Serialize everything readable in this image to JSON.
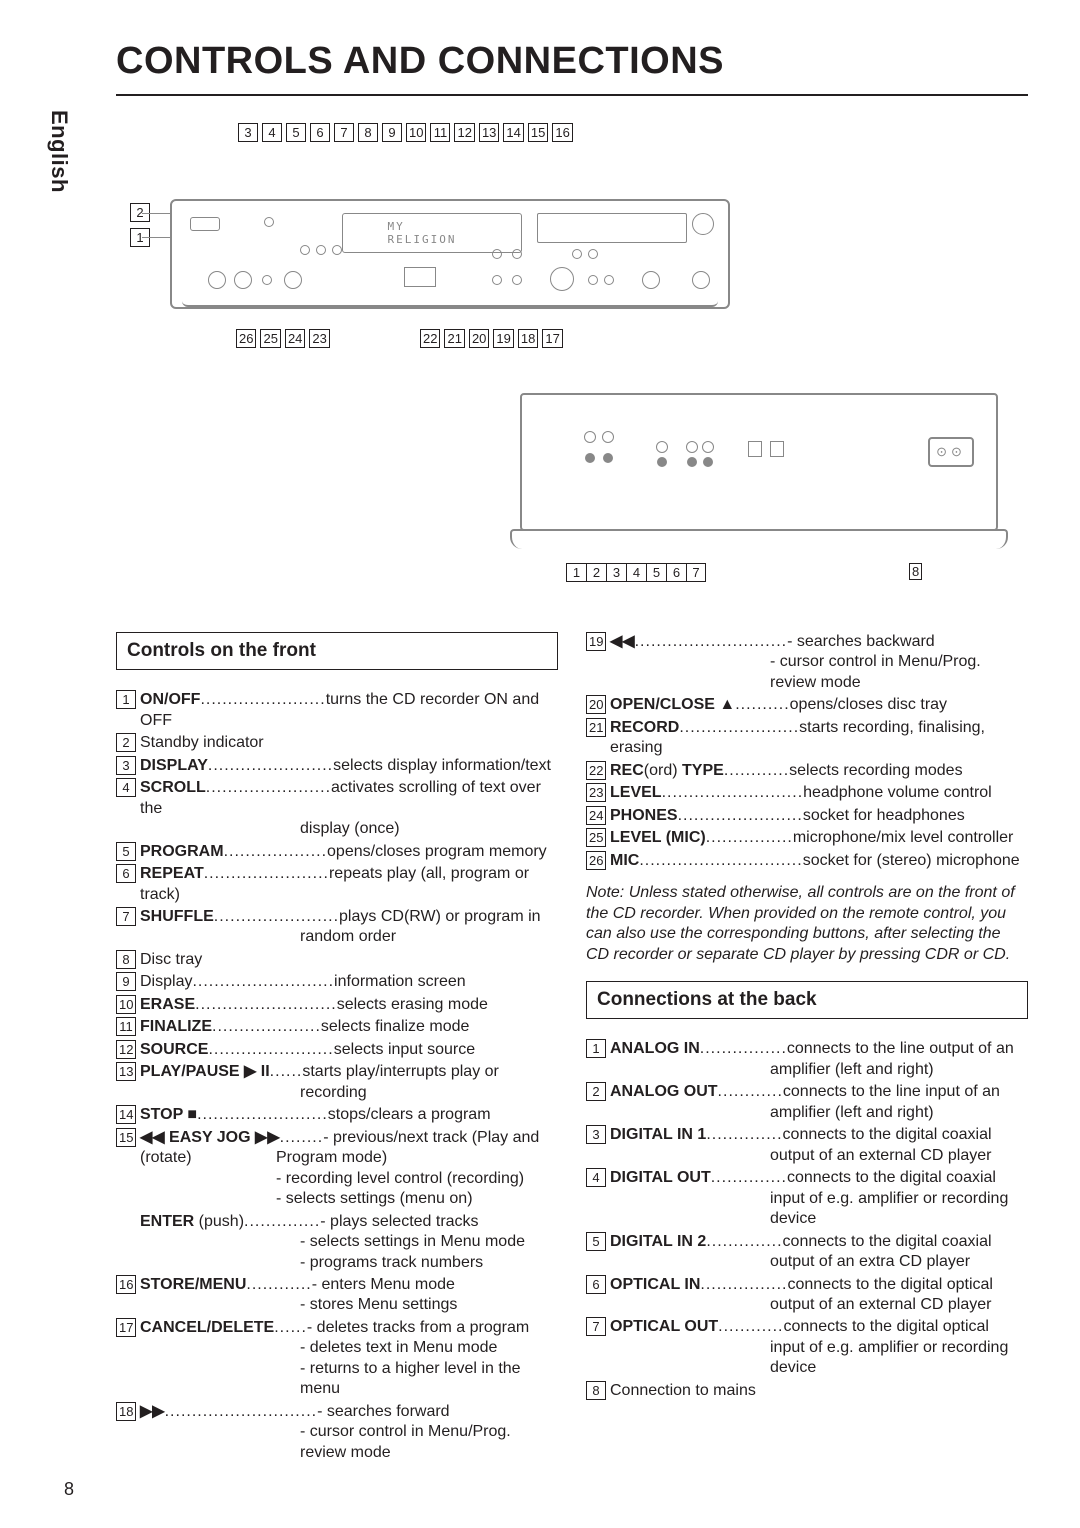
{
  "page": {
    "title": "CONTROLS AND CONNECTIONS",
    "side_tab": "English",
    "page_number": "8"
  },
  "sections": {
    "front_title": "Controls on the front",
    "back_title": "Connections at the back"
  },
  "diagram": {
    "top_numbers": [
      "3",
      "4",
      "5",
      "6",
      "7",
      "8",
      "9",
      "10",
      "11",
      "12",
      "13",
      "14",
      "15",
      "16"
    ],
    "left_numbers": [
      "2",
      "1"
    ],
    "bottom_left_numbers": [
      "26",
      "25",
      "24",
      "23"
    ],
    "bottom_right_numbers": [
      "22",
      "21",
      "20",
      "19",
      "18",
      "17"
    ],
    "rear_numbers": [
      "1",
      "2",
      "3",
      "4",
      "5",
      "6",
      "7"
    ],
    "rear_number_8": "8",
    "display_text": "MY RELIGION"
  },
  "front": [
    {
      "n": "1",
      "term": "ON/OFF",
      "dots": ".......................",
      "desc": "turns the CD recorder ON and OFF"
    },
    {
      "n": "2",
      "term": "",
      "dots": "",
      "desc": "Standby indicator"
    },
    {
      "n": "3",
      "term": "DISPLAY",
      "dots": ".......................",
      "desc": "selects display information/text"
    },
    {
      "n": "4",
      "term": "SCROLL",
      "dots": ".......................",
      "desc": "activates scrolling of text over the",
      "extra": [
        "display (once)"
      ]
    },
    {
      "n": "5",
      "term": "PROGRAM",
      "dots": "...................",
      "desc": "opens/closes program memory"
    },
    {
      "n": "6",
      "term": "REPEAT",
      "dots": ".......................",
      "desc": "repeats play (all, program or track)"
    },
    {
      "n": "7",
      "term": "SHUFFLE",
      "dots": ".......................",
      "desc": "plays CD(RW) or program in",
      "extra": [
        "random order"
      ]
    },
    {
      "n": "8",
      "term": "",
      "dots": "",
      "desc": "Disc tray"
    },
    {
      "n": "9",
      "term": "",
      "dots": "",
      "desc_prefix": "Display",
      "desc_dots": "..........................",
      "desc": "information screen"
    },
    {
      "n": "10",
      "term": "ERASE",
      "dots": "..........................",
      "desc": "selects erasing mode"
    },
    {
      "n": "11",
      "term": "FINALIZE",
      "dots": "....................",
      "desc": "selects finalize mode"
    },
    {
      "n": "12",
      "term": "SOURCE",
      "dots": ".......................",
      "desc": "selects input source"
    },
    {
      "n": "13",
      "term": "PLAY/PAUSE ▶ II",
      "dots": "......",
      "desc": "starts play/interrupts play or",
      "extra": [
        "recording"
      ]
    },
    {
      "n": "14",
      "term": "STOP ■",
      "dots": "........................",
      "desc": "stops/clears a program"
    },
    {
      "n": "15",
      "term": "◀◀ EASY JOG ▶▶",
      "dots": "........",
      "desc": "- previous/next track (Play and",
      "sub_label": "(rotate)",
      "extra_at_sub": [
        "Program mode)",
        "- recording level control (recording)",
        "- selects settings (menu on)"
      ]
    },
    {
      "n": "",
      "term": "ENTER",
      "term_suffix": " (push)",
      "dots": "..............",
      "desc": "- plays selected tracks",
      "extra": [
        "- selects settings in Menu mode",
        "- programs track numbers"
      ]
    },
    {
      "n": "16",
      "term": "STORE/MENU",
      "dots": "............",
      "desc": "- enters Menu mode",
      "extra": [
        "- stores Menu settings"
      ]
    },
    {
      "n": "17",
      "term": "CANCEL/DELETE",
      "dots": "......",
      "desc": "- deletes tracks from a program",
      "extra": [
        "- deletes text in Menu mode",
        "- returns to a higher level in the",
        "  menu"
      ]
    },
    {
      "n": "18",
      "term": "▶▶",
      "dots": "............................",
      "desc": "- searches forward",
      "extra": [
        "- cursor control in Menu/Prog.",
        "  review mode"
      ]
    }
  ],
  "front_r": [
    {
      "n": "19",
      "term": "◀◀",
      "dots": "............................",
      "desc": "- searches backward",
      "extra": [
        "- cursor control in Menu/Prog.",
        "  review mode"
      ]
    },
    {
      "n": "20",
      "term": "OPEN/CLOSE ▲",
      "dots": "..........",
      "desc": "opens/closes disc tray"
    },
    {
      "n": "21",
      "term": "RECORD",
      "dots": "......................",
      "desc": "starts recording, finalising, erasing"
    },
    {
      "n": "22",
      "term_prefix": "REC",
      "term_mid": "(ord) ",
      "term": "TYPE",
      "dots": "............",
      "desc": "selects recording modes"
    },
    {
      "n": "23",
      "term": "LEVEL",
      "dots": "..........................",
      "desc": "headphone volume control"
    },
    {
      "n": "24",
      "term": "PHONES",
      "dots": ".......................",
      "desc": "socket for headphones"
    },
    {
      "n": "25",
      "term": "LEVEL (MIC)",
      "dots": "................",
      "desc": "microphone/mix level controller"
    },
    {
      "n": "26",
      "term": "MIC",
      "dots": "..............................",
      "desc": "socket for (stereo) microphone"
    }
  ],
  "note": "Note: Unless stated otherwise, all controls are on the front of the CD recorder. When provided on the remote control, you can also use the corresponding buttons, after selecting the CD recorder or separate CD player by pressing CDR or CD.",
  "back": [
    {
      "n": "1",
      "term": "ANALOG IN",
      "dots": "................",
      "desc": "connects to the line output of an",
      "extra": [
        "amplifier (left and right)"
      ]
    },
    {
      "n": "2",
      "term": "ANALOG OUT",
      "dots": "............",
      "desc": "connects to the line input of an",
      "extra": [
        "amplifier (left and right)"
      ]
    },
    {
      "n": "3",
      "term": "DIGITAL IN 1",
      "dots": "..............",
      "desc": "connects to the digital coaxial",
      "extra": [
        "output of an external CD player"
      ]
    },
    {
      "n": "4",
      "term": "DIGITAL OUT",
      "dots": "..............",
      "desc": "connects to the digital coaxial",
      "extra": [
        "input of e.g. amplifier or recording",
        "device"
      ]
    },
    {
      "n": "5",
      "term": "DIGITAL IN 2",
      "dots": "..............",
      "desc": "connects to the digital coaxial",
      "extra": [
        "output of an extra CD player"
      ]
    },
    {
      "n": "6",
      "term": "OPTICAL IN",
      "dots": "................",
      "desc": "connects to the digital optical",
      "extra": [
        "output of an external CD player"
      ]
    },
    {
      "n": "7",
      "term": "OPTICAL OUT",
      "dots": "............",
      "desc": "connects to the digital optical",
      "extra": [
        "input of e.g. amplifier or recording",
        "device"
      ]
    },
    {
      "n": "8",
      "term": "",
      "dots": "",
      "desc": "Connection to mains"
    }
  ]
}
